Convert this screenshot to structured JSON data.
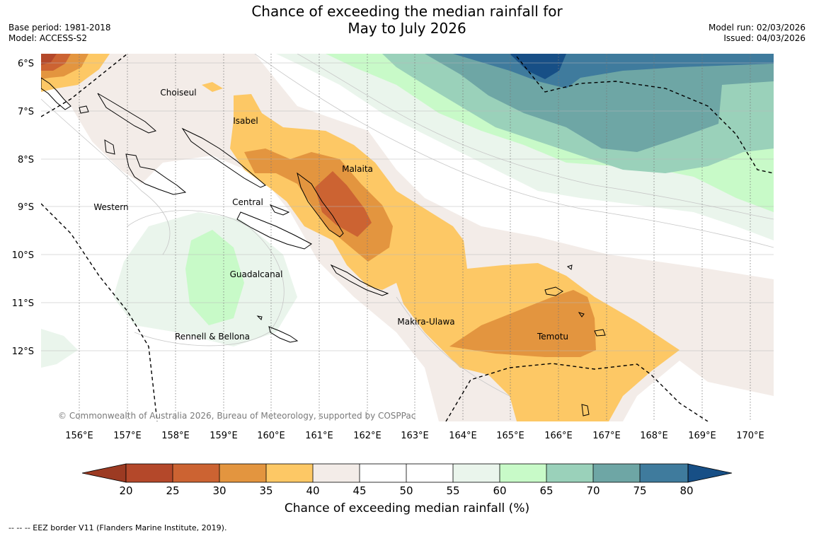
{
  "title": {
    "line1": "Chance of exceeding the median rainfall for",
    "line2": "May to July 2026"
  },
  "meta_left": {
    "base_period": "Base period: 1981-2018",
    "model": "Model: ACCESS-S2"
  },
  "meta_right": {
    "model_run": "Model run: 02/03/2026",
    "issued": "Issued: 04/03/2026"
  },
  "map": {
    "lat_labels": [
      "6°S",
      "7°S",
      "8°S",
      "9°S",
      "10°S",
      "11°S",
      "12°S"
    ],
    "lon_labels": [
      "156°E",
      "157°E",
      "158°E",
      "159°E",
      "160°E",
      "161°E",
      "162°E",
      "163°E",
      "164°E",
      "165°E",
      "166°E",
      "167°E",
      "168°E",
      "169°E",
      "170°E"
    ],
    "regions": [
      "Choiseul",
      "Isabel",
      "Malaita",
      "Western",
      "Central",
      "Guadalcanal",
      "Makira-Ulawa",
      "Temotu",
      "Rennell & Bellona"
    ],
    "copyright": "© Commonwealth of Australia 2026, Bureau of Meteorology, supported by COSPPac"
  },
  "colorbar": {
    "ticks": [
      "20",
      "25",
      "30",
      "35",
      "40",
      "45",
      "50",
      "55",
      "60",
      "65",
      "70",
      "75",
      "80"
    ],
    "colors": [
      "#b4482a",
      "#cc6332",
      "#e3953f",
      "#fdc865",
      "#f3ece8",
      "#ffffff",
      "#ffffff",
      "#eaf5ec",
      "#c8fac8",
      "#9ad1ba",
      "#6ea6a5",
      "#3f7b9d"
    ],
    "low_extend_color": "#9c3a22",
    "high_extend_color": "#174f86",
    "title": "Chance of exceeding median rainfall (%)"
  },
  "footnote": "--  --  -- EEZ border V11 (Flanders Marine Institute, 2019)."
}
